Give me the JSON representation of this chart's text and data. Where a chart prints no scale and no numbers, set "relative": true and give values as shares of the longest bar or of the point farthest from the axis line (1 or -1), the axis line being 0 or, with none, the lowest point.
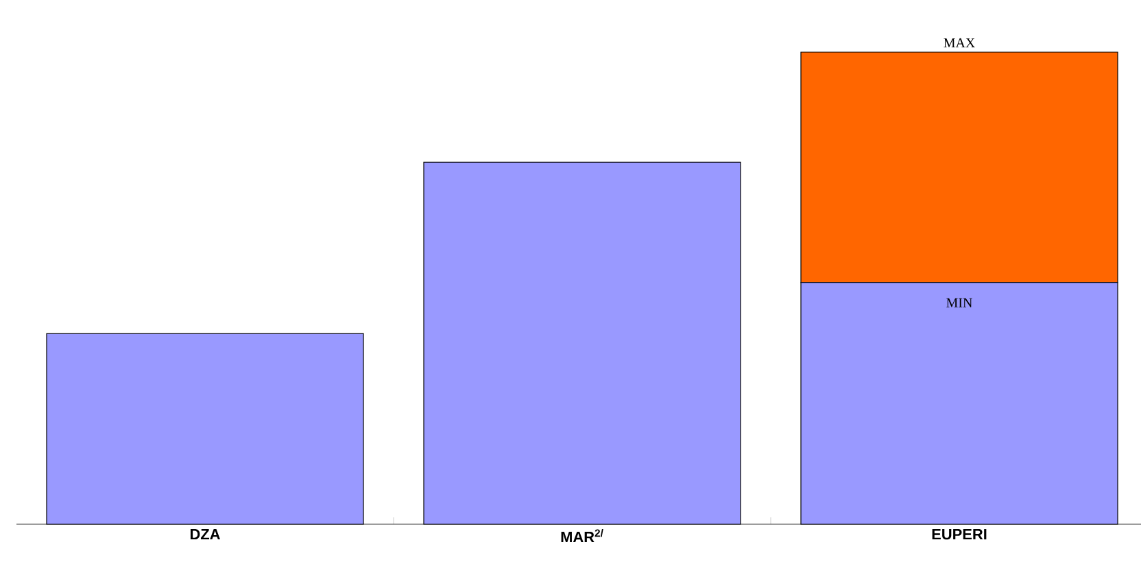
{
  "chart_data": {
    "type": "bar",
    "stacked": true,
    "relative": true,
    "categories": [
      "DZA",
      "MAR$^{2/}$",
      "EUPERI"
    ],
    "series": [
      {
        "name": "MIN",
        "color": "#9999ff",
        "values": [
          0.404,
          0.767,
          0.512
        ]
      },
      {
        "name": "MAX",
        "color": "#ff6600",
        "values": [
          null,
          null,
          0.488
        ]
      }
    ]
  }
}
